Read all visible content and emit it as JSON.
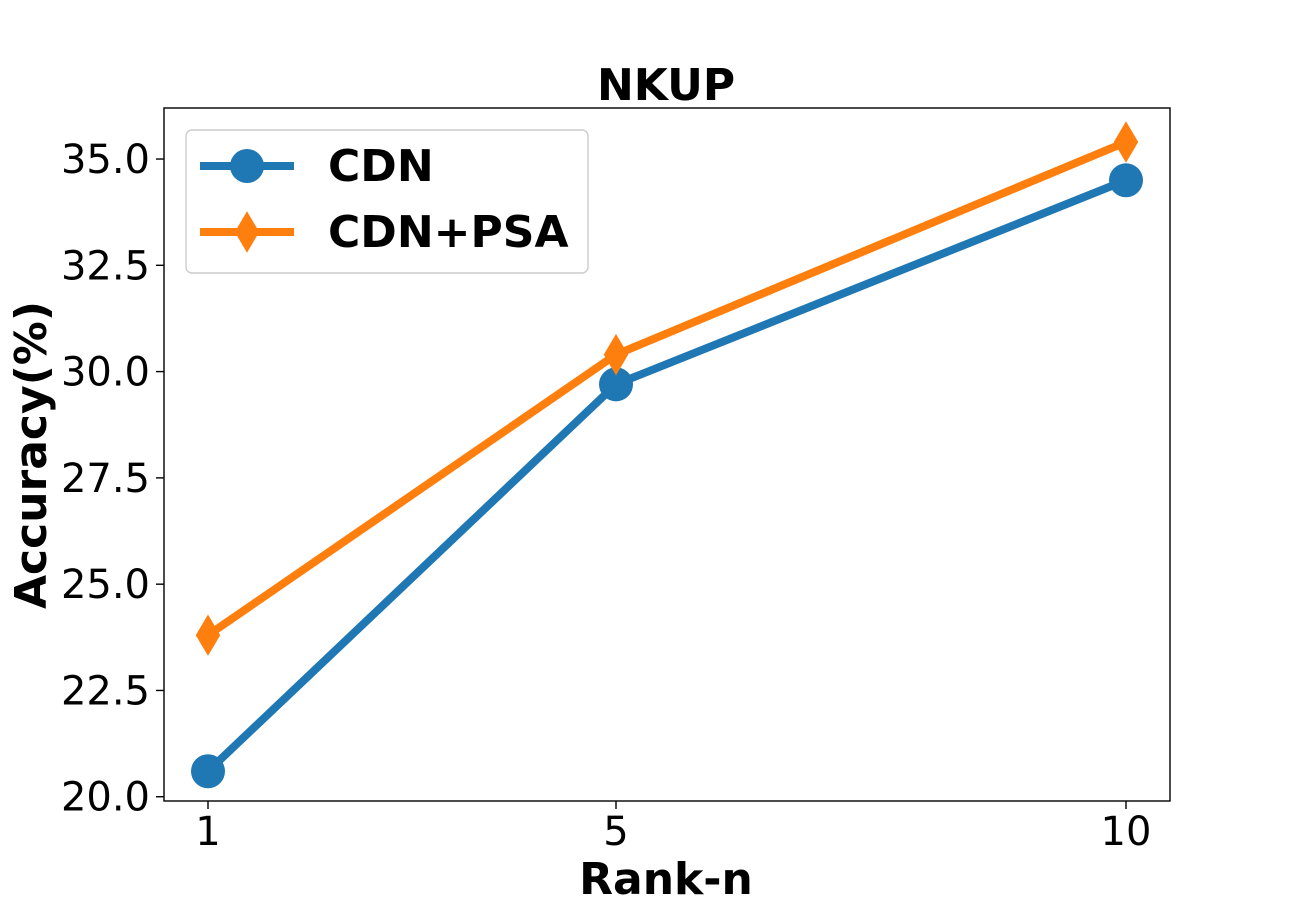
{
  "chart_data": {
    "type": "line",
    "title": "NKUP",
    "xlabel": "Rank-n",
    "ylabel": "Accuracy(%)",
    "x": [
      1,
      5,
      10
    ],
    "xticks": [
      "1",
      "5",
      "10"
    ],
    "ylim": [
      19.9,
      36.2
    ],
    "yticks": [
      "20.0",
      "22.5",
      "25.0",
      "27.5",
      "30.0",
      "32.5",
      "35.0"
    ],
    "grid": false,
    "legend_position": "top-left",
    "series": [
      {
        "name": "CDN",
        "values": [
          20.6,
          29.7,
          34.5
        ],
        "color": "#1f77b4",
        "marker": "circle"
      },
      {
        "name": "CDN+PSA",
        "values": [
          23.8,
          30.4,
          35.4
        ],
        "color": "#ff7f0e",
        "marker": "diamond"
      }
    ]
  }
}
